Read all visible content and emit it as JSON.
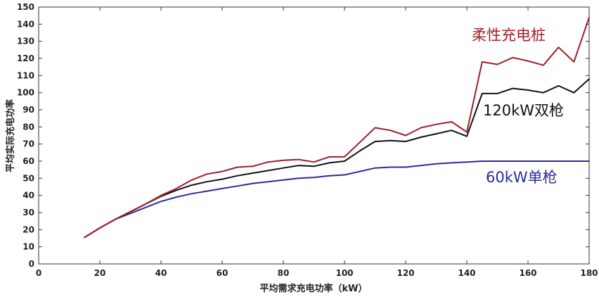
{
  "chart_data": {
    "type": "line",
    "xlabel": "平均需求充电功率（kW）",
    "ylabel": "平均实际充电功率",
    "xlim": [
      0,
      180
    ],
    "ylim": [
      0,
      150
    ],
    "xticks": [
      0,
      20,
      40,
      60,
      80,
      100,
      120,
      140,
      160,
      180
    ],
    "yticks": [
      0,
      10,
      20,
      30,
      40,
      50,
      60,
      70,
      80,
      90,
      100,
      110,
      120,
      130,
      140,
      150
    ],
    "grid": false,
    "series": [
      {
        "name": "柔性充电桩",
        "color": "#a01e2a",
        "x": [
          15,
          20,
          25,
          30,
          35,
          40,
          45,
          50,
          55,
          60,
          65,
          70,
          75,
          80,
          85,
          90,
          95,
          100,
          105,
          110,
          115,
          120,
          125,
          130,
          135,
          140,
          145,
          150,
          155,
          160,
          165,
          170,
          175,
          180
        ],
        "y": [
          15.5,
          21,
          26,
          30.5,
          35,
          40,
          44,
          49,
          52.5,
          54,
          56.5,
          57,
          59.5,
          60.5,
          61,
          59.5,
          62.5,
          62.5,
          71,
          79.5,
          78,
          75,
          79.5,
          81.5,
          83,
          77,
          118,
          116.5,
          120.5,
          118.5,
          116,
          126.5,
          118,
          144
        ]
      },
      {
        "name": "120kW双枪",
        "color": "#111111",
        "x": [
          15,
          20,
          25,
          30,
          35,
          40,
          45,
          50,
          55,
          60,
          65,
          70,
          75,
          80,
          85,
          90,
          95,
          100,
          105,
          110,
          115,
          120,
          125,
          130,
          135,
          140,
          145,
          150,
          155,
          160,
          165,
          170,
          175,
          180
        ],
        "y": [
          15.5,
          21,
          26,
          30.5,
          35,
          39.5,
          43,
          46,
          48,
          49.5,
          51.5,
          53,
          54.5,
          56,
          57.5,
          57,
          59,
          60,
          66,
          71.5,
          72,
          71.5,
          74,
          76,
          78,
          74.5,
          99.5,
          99.5,
          102.5,
          101.5,
          100,
          104,
          100,
          108
        ]
      },
      {
        "name": "60kW单枪",
        "color": "#2a2aa0",
        "x": [
          15,
          20,
          25,
          30,
          35,
          40,
          45,
          50,
          55,
          60,
          65,
          70,
          75,
          80,
          85,
          90,
          95,
          100,
          105,
          110,
          115,
          120,
          125,
          130,
          135,
          140,
          145,
          150,
          155,
          160,
          165,
          170,
          175,
          180
        ],
        "y": [
          15.5,
          21,
          26,
          29.5,
          33,
          36.5,
          39,
          41,
          42.5,
          44,
          45.5,
          47,
          48,
          49,
          50,
          50.5,
          51.5,
          52,
          54,
          56,
          56.5,
          56.5,
          57.5,
          58.5,
          59,
          59.5,
          60,
          60,
          60,
          60,
          60,
          60,
          60,
          60
        ]
      }
    ]
  }
}
